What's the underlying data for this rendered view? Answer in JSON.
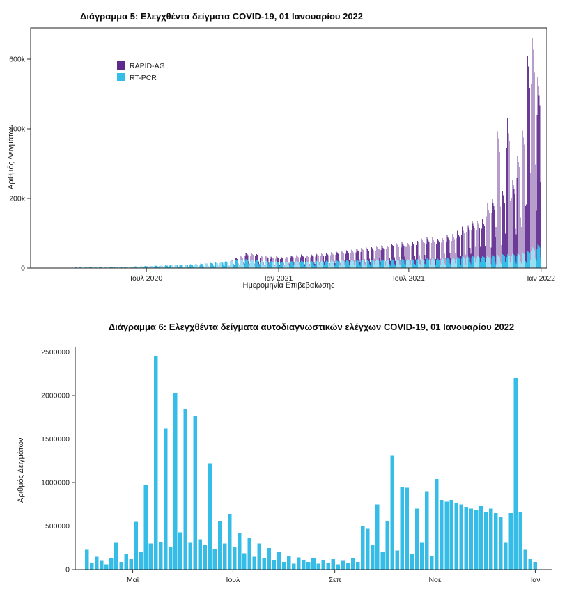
{
  "page": {
    "background": "#ffffff"
  },
  "chart_data": [
    {
      "type": "bar",
      "subtype": "stacked-daily-timeseries",
      "title": "Διάγραμμα 5: Ελεγχθέντα δείγματα COVID-19, 01 Ιανουαρίου 2022",
      "xlabel": "Ημερομηνία Επιβεβαίωσης",
      "ylabel": "Αριθμός Δειγμάτων",
      "legend_position": "top-left-inside",
      "legend": [
        {
          "name": "RAPID-AG",
          "color": "#5f2a8e"
        },
        {
          "name": "RT-PCR",
          "color": "#35bde8"
        }
      ],
      "ylim": [
        0,
        690000
      ],
      "y_ticks": [
        {
          "v": 0,
          "label": "0"
        },
        {
          "v": 200000,
          "label": "200k"
        },
        {
          "v": 400000,
          "label": "400k"
        },
        {
          "v": 600000,
          "label": "600k"
        }
      ],
      "x_day0": "2020-02-01",
      "xlim_days": [
        -10,
        708
      ],
      "x_ticks": [
        {
          "day": 151,
          "label": "Ιουλ 2020"
        },
        {
          "day": 335,
          "label": "Ιαν 2021"
        },
        {
          "day": 516,
          "label": "Ιουλ 2021"
        },
        {
          "day": 700,
          "label": "Ιαν 2022"
        }
      ],
      "encoding_note": "daily value = weekly_peak_thousands[week] * 1000 * weekday_profile[day_of_week]; estimated from pixels",
      "weekday_profile": [
        0.3,
        0.8,
        1.0,
        0.95,
        0.9,
        0.85,
        0.45
      ],
      "unit_scale": 1000,
      "series": [
        {
          "name": "RT-PCR",
          "color": "#35bde8",
          "stack": "bottom",
          "weekly_peak_thousands": [
            0.2,
            0.3,
            0.5,
            0.8,
            1,
            1.2,
            1.5,
            1.8,
            2,
            2.2,
            2.5,
            2.8,
            3,
            3.2,
            3.5,
            3.8,
            4,
            4.2,
            4.5,
            5,
            5.5,
            6,
            6.5,
            7,
            7.5,
            8,
            8.5,
            9,
            9.5,
            10,
            11,
            12,
            13,
            14,
            15,
            16,
            18,
            20,
            22,
            24,
            25,
            26,
            25,
            24,
            22,
            21,
            20,
            20,
            19,
            19,
            20,
            20,
            21,
            20,
            20,
            21,
            21,
            21,
            22,
            22,
            23,
            23,
            23,
            24,
            24,
            24,
            24,
            25,
            25,
            25,
            25,
            25,
            26,
            26,
            26,
            27,
            27,
            28,
            28,
            28,
            29,
            30,
            30,
            32,
            34,
            35,
            36,
            36,
            36,
            36,
            38,
            38,
            40,
            40,
            42,
            42,
            45,
            50,
            60,
            70
          ]
        },
        {
          "name": "RAPID-AG",
          "color": "#5f2a8e",
          "stack": "top",
          "weekly_peak_thousands": [
            0,
            0,
            0,
            0,
            0,
            0,
            0,
            0,
            0,
            0,
            0,
            0,
            0,
            0,
            0,
            0,
            0,
            0,
            0,
            0,
            0,
            0,
            0,
            0,
            0,
            0,
            0,
            0,
            0,
            0,
            0,
            0,
            0,
            0,
            0,
            0,
            0,
            0,
            2,
            5,
            10,
            18,
            20,
            18,
            15,
            14,
            13,
            14,
            14,
            15,
            16,
            17,
            18,
            18,
            19,
            20,
            21,
            22,
            24,
            25,
            26,
            28,
            30,
            32,
            34,
            35,
            36,
            38,
            40,
            42,
            44,
            46,
            48,
            50,
            52,
            55,
            58,
            60,
            62,
            60,
            62,
            65,
            68,
            75,
            85,
            95,
            100,
            100,
            105,
            150,
            160,
            355,
            180,
            390,
            210,
            280,
            350,
            560,
            600,
            480
          ]
        }
      ]
    },
    {
      "type": "bar",
      "subtype": "daily-timeseries",
      "title": "Διάγραμμα 6: Ελεγχθέντα δείγματα αυτοδιαγνωστικών ελέγχων COVID-19, 01 Ιανουαρίου 2022",
      "xlabel": "",
      "ylabel": "Αριθμός Δειγμάτων",
      "bar_color": "#35bde8",
      "ylim": [
        0,
        2560000
      ],
      "y_ticks": [
        {
          "v": 0,
          "label": "0"
        },
        {
          "v": 500000,
          "label": "500000"
        },
        {
          "v": 1000000,
          "label": "1000000"
        },
        {
          "v": 1500000,
          "label": "1500000"
        },
        {
          "v": 2000000,
          "label": "2000000"
        },
        {
          "v": 2500000,
          "label": "2500000"
        }
      ],
      "x_day0": "2021-04-01",
      "xlim_days": [
        -5,
        285
      ],
      "x_ticks": [
        {
          "day": 30,
          "label": "Μαΐ"
        },
        {
          "day": 91,
          "label": "Ιουλ"
        },
        {
          "day": 153,
          "label": "Σεπ"
        },
        {
          "day": 214,
          "label": "Νοε"
        },
        {
          "day": 275,
          "label": "Ιαν"
        }
      ],
      "encoding_note": "values sampled every step_days; day = first_day + i*step_days; estimated from pixels",
      "first_day": 2,
      "step_days": 3,
      "unit_scale": 1000,
      "values_thousands": [
        230,
        80,
        150,
        100,
        60,
        130,
        310,
        90,
        180,
        120,
        550,
        200,
        970,
        300,
        2450,
        320,
        1620,
        260,
        2030,
        430,
        1850,
        310,
        1760,
        350,
        280,
        1220,
        240,
        560,
        300,
        640,
        260,
        420,
        190,
        370,
        150,
        300,
        130,
        250,
        110,
        200,
        90,
        160,
        70,
        140,
        110,
        90,
        130,
        70,
        110,
        80,
        120,
        60,
        100,
        80,
        130,
        90,
        500,
        470,
        280,
        750,
        200,
        560,
        1310,
        220,
        950,
        940,
        180,
        700,
        310,
        900,
        160,
        1040,
        800,
        780,
        800,
        760,
        750,
        720,
        700,
        680,
        730,
        660,
        700,
        650,
        600,
        310,
        650,
        2200,
        660,
        230,
        120,
        90
      ]
    }
  ]
}
